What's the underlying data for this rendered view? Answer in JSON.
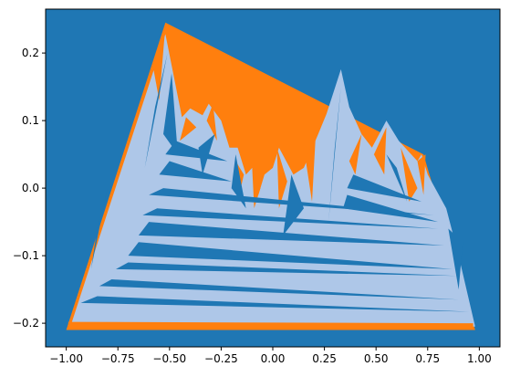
{
  "chart_data": {
    "type": "area",
    "title": "",
    "xlabel": "",
    "ylabel": "",
    "xlim": [
      -1.1,
      1.1
    ],
    "ylim": [
      -0.235,
      0.265
    ],
    "grid": false,
    "legend": "none",
    "colors": {
      "background": "#1f77b4",
      "light_fill": "#aec7e8",
      "accent_fill": "#ff7f0e",
      "axes_edge": "#000000"
    },
    "xticks": [
      {
        "value": -1.0,
        "label": "−1.00"
      },
      {
        "value": -0.75,
        "label": "−0.75"
      },
      {
        "value": -0.5,
        "label": "−0.50"
      },
      {
        "value": -0.25,
        "label": "−0.25"
      },
      {
        "value": 0.0,
        "label": "0.00"
      },
      {
        "value": 0.25,
        "label": "0.25"
      },
      {
        "value": 0.5,
        "label": "0.50"
      },
      {
        "value": 0.75,
        "label": "0.75"
      },
      {
        "value": 1.0,
        "label": "1.00"
      }
    ],
    "yticks": [
      {
        "value": -0.2,
        "label": "−0.2"
      },
      {
        "value": -0.1,
        "label": "−0.1"
      },
      {
        "value": 0.0,
        "label": "0.0"
      },
      {
        "value": 0.1,
        "label": "0.1"
      },
      {
        "value": 0.2,
        "label": "0.2"
      }
    ],
    "layers": [
      {
        "name": "outer-accent-fill",
        "color": "#ff7f0e",
        "polygons": [
          [
            [
              -1.0,
              -0.21
            ],
            [
              -0.52,
              0.245
            ],
            [
              0.73,
              0.05
            ],
            [
              0.98,
              -0.21
            ]
          ]
        ]
      },
      {
        "name": "light-mesh-fill",
        "color": "#aec7e8",
        "polygons": [
          [
            [
              -0.98,
              -0.205
            ],
            [
              -0.52,
              0.228
            ],
            [
              -0.44,
              0.105
            ],
            [
              -0.4,
              0.118
            ],
            [
              -0.34,
              0.108
            ],
            [
              -0.31,
              0.125
            ],
            [
              -0.25,
              0.1
            ],
            [
              -0.21,
              0.06
            ],
            [
              -0.17,
              0.06
            ],
            [
              -0.13,
              0.02
            ],
            [
              -0.1,
              0.03
            ],
            [
              -0.07,
              -0.01
            ],
            [
              -0.04,
              0.02
            ],
            [
              0.0,
              0.03
            ],
            [
              0.03,
              0.06
            ],
            [
              0.1,
              0.02
            ],
            [
              0.15,
              0.03
            ],
            [
              0.22,
              0.08
            ],
            [
              0.26,
              0.11
            ],
            [
              0.33,
              0.176
            ],
            [
              0.37,
              0.12
            ],
            [
              0.43,
              0.08
            ],
            [
              0.48,
              0.06
            ],
            [
              0.55,
              0.1
            ],
            [
              0.61,
              0.07
            ],
            [
              0.7,
              0.04
            ],
            [
              0.72,
              0.05
            ],
            [
              0.75,
              0.02
            ],
            [
              0.84,
              -0.03
            ],
            [
              0.9,
              -0.1
            ],
            [
              0.98,
              -0.205
            ]
          ]
        ]
      },
      {
        "name": "orange-mesh-fill",
        "color": "#ff7f0e",
        "polygons": [
          [
            [
              -0.99,
              -0.207
            ],
            [
              0.97,
              -0.207
            ],
            [
              0.97,
              -0.2
            ],
            [
              -0.99,
              -0.198
            ]
          ],
          [
            [
              -0.58,
              0.18
            ],
            [
              -0.52,
              0.24
            ],
            [
              -0.55,
              0.13
            ]
          ],
          [
            [
              -0.45,
              0.07
            ],
            [
              -0.42,
              0.105
            ],
            [
              -0.37,
              0.09
            ]
          ],
          [
            [
              -0.32,
              0.1
            ],
            [
              -0.29,
              0.125
            ],
            [
              -0.27,
              0.07
            ]
          ],
          [
            [
              -0.18,
              0.04
            ],
            [
              -0.14,
              0.02
            ],
            [
              -0.17,
              -0.02
            ]
          ],
          [
            [
              -0.1,
              0.03
            ],
            [
              -0.06,
              0.0
            ],
            [
              -0.09,
              -0.03
            ]
          ],
          [
            [
              0.02,
              0.06
            ],
            [
              0.07,
              0.01
            ],
            [
              0.03,
              -0.03
            ]
          ],
          [
            [
              0.16,
              0.04
            ],
            [
              0.21,
              0.09
            ],
            [
              0.19,
              -0.02
            ]
          ],
          [
            [
              0.37,
              0.04
            ],
            [
              0.43,
              0.08
            ],
            [
              0.4,
              0.02
            ]
          ],
          [
            [
              0.49,
              0.05
            ],
            [
              0.55,
              0.09
            ],
            [
              0.54,
              0.02
            ]
          ],
          [
            [
              0.62,
              0.06
            ],
            [
              0.7,
              0.0
            ],
            [
              0.66,
              -0.02
            ]
          ],
          [
            [
              0.7,
              0.04
            ],
            [
              0.74,
              0.05
            ],
            [
              0.73,
              -0.01
            ]
          ]
        ]
      },
      {
        "name": "dark-mesh-cuts",
        "color": "#1f77b4",
        "polygons": [
          [
            [
              -0.93,
              -0.17
            ],
            [
              0.95,
              -0.183
            ],
            [
              -0.85,
              -0.16
            ]
          ],
          [
            [
              -0.84,
              -0.145
            ],
            [
              0.9,
              -0.165
            ],
            [
              -0.78,
              -0.135
            ]
          ],
          [
            [
              -0.76,
              -0.12
            ],
            [
              0.89,
              -0.13
            ],
            [
              -0.7,
              -0.11
            ]
          ],
          [
            [
              -0.7,
              -0.1
            ],
            [
              0.87,
              -0.12
            ],
            [
              -0.65,
              -0.08
            ]
          ],
          [
            [
              -0.65,
              -0.07
            ],
            [
              0.83,
              -0.085
            ],
            [
              -0.6,
              -0.05
            ]
          ],
          [
            [
              -0.63,
              -0.04
            ],
            [
              0.8,
              -0.06
            ],
            [
              -0.56,
              -0.03
            ]
          ],
          [
            [
              -0.6,
              -0.01
            ],
            [
              0.78,
              -0.04
            ],
            [
              -0.53,
              0.0
            ]
          ],
          [
            [
              -0.55,
              0.02
            ],
            [
              -0.2,
              0.01
            ],
            [
              -0.5,
              0.04
            ]
          ],
          [
            [
              -0.52,
              0.05
            ],
            [
              -0.22,
              0.04
            ],
            [
              -0.47,
              0.07
            ]
          ],
          [
            [
              0.34,
              -0.03
            ],
            [
              0.8,
              -0.05
            ],
            [
              0.36,
              -0.01
            ]
          ],
          [
            [
              0.36,
              0.0
            ],
            [
              0.72,
              -0.02
            ],
            [
              0.39,
              0.02
            ]
          ],
          [
            [
              -0.57,
              0.12
            ],
            [
              -0.51,
              0.2
            ],
            [
              -0.62,
              0.03
            ]
          ],
          [
            [
              -0.49,
              0.17
            ],
            [
              -0.46,
              0.05
            ],
            [
              -0.53,
              0.08
            ]
          ],
          [
            [
              -0.36,
              0.06
            ],
            [
              -0.28,
              0.08
            ],
            [
              -0.34,
              0.02
            ]
          ],
          [
            [
              -0.2,
              0.0
            ],
            [
              -0.13,
              -0.03
            ],
            [
              -0.18,
              0.05
            ]
          ],
          [
            [
              0.05,
              -0.07
            ],
            [
              0.15,
              -0.03
            ],
            [
              0.09,
              0.02
            ]
          ],
          [
            [
              0.27,
              -0.05
            ],
            [
              0.33,
              0.15
            ],
            [
              0.3,
              0.06
            ]
          ],
          [
            [
              0.55,
              0.05
            ],
            [
              0.65,
              -0.02
            ],
            [
              0.6,
              0.03
            ]
          ],
          [
            [
              -0.85,
              -0.06
            ],
            [
              -0.8,
              0.0
            ],
            [
              -0.88,
              -0.12
            ]
          ],
          [
            [
              0.85,
              -0.06
            ],
            [
              0.9,
              -0.15
            ],
            [
              0.92,
              -0.08
            ]
          ]
        ]
      }
    ]
  }
}
